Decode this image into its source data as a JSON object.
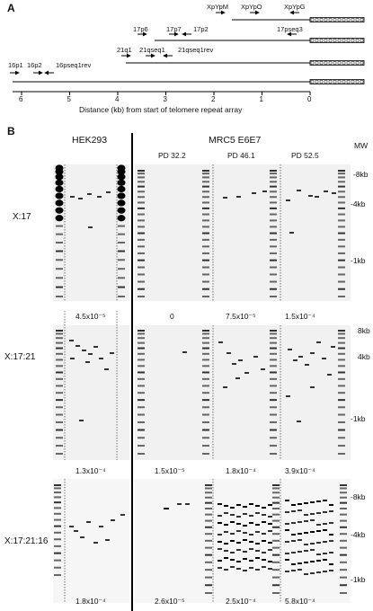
{
  "panel_a": {
    "letter": "A",
    "primers": {
      "XpYpM": "XpYpM",
      "XpYpO": "XpYpO",
      "XpYpG": "XpYpG",
      "p17p6": "17p6",
      "p17p7": "17p7",
      "p17p2": "17p2",
      "p17pseq3": "17pseq3",
      "p21q1": "21q1",
      "p21qseq1": "21qseq1",
      "p21qseq1rev": "21qseq1rev",
      "p16p1": "16p1",
      "p16p2": "16p2",
      "p16pseq1rev": "16pseq1rev"
    },
    "axis_ticks": [
      "6",
      "5",
      "4",
      "3",
      "2",
      "1",
      "0"
    ],
    "axis_title": "Distance (kb) from start of telomere repeat array"
  },
  "panel_b": {
    "letter": "B",
    "hek_header": "HEK293",
    "mrc_header": "MRC5 E6E7",
    "pd_labels": [
      "PD 32.2",
      "PD 46.1",
      "PD 52.5"
    ],
    "mw_header": "MW",
    "rows": [
      {
        "label": "X:17",
        "mw": [
          "-8kb",
          "-4kb",
          "-1kb"
        ],
        "hek_freq": "4.5x10⁻⁵",
        "mrc_freq": [
          "0",
          "7.5x10⁻⁵",
          "1.5x10⁻⁴"
        ]
      },
      {
        "label": "X:17:21",
        "mw": [
          "8kb",
          "4kb",
          "-1kb"
        ],
        "hek_freq": "1.3x10⁻⁴",
        "mrc_freq": [
          "1.5x10⁻⁵",
          "1.8x10⁻⁴",
          "3.9x10⁻⁴"
        ]
      },
      {
        "label": "X:17:21:16",
        "mw": [
          "-8kb",
          "-4kb",
          "-1kb"
        ],
        "hek_freq": "1.8x10⁻⁴",
        "mrc_freq": [
          "2.6x10⁻⁵",
          "2.5x10⁻⁴",
          "5.8x10⁻⁴"
        ]
      }
    ]
  }
}
